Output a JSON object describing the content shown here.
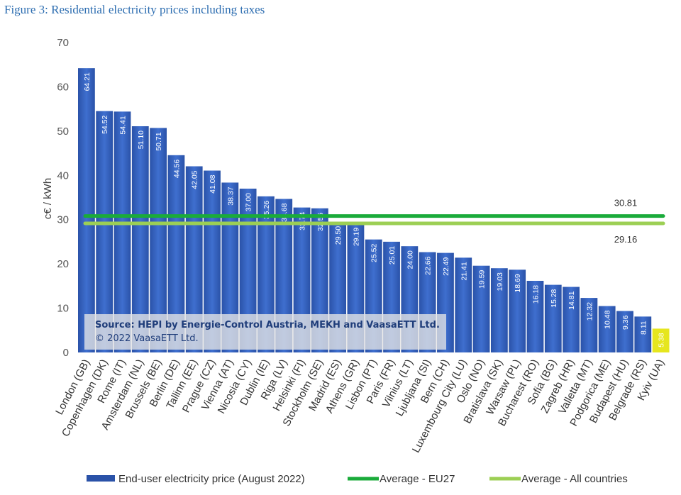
{
  "figure_title": "Figure 3: Residential electricity prices including taxes",
  "colors": {
    "bar": "#3a67c4",
    "bar_dark": "#2a52a8",
    "highlight_bar": "#e6e61e",
    "avg_eu27": "#1aab3a",
    "avg_all": "#9ccf54"
  },
  "source": {
    "line1": "Source: HEPI by Energie-Control Austria, MEKH and VaasaETT Ltd.",
    "line2": "© 2022 VaasaETT Ltd."
  },
  "chart_data": {
    "type": "bar",
    "ylabel": "c€ / kWh",
    "ylim": [
      0,
      70
    ],
    "yticks": [
      0,
      10,
      20,
      30,
      40,
      50,
      60,
      70
    ],
    "categories": [
      "London (GB)",
      "Copenhagen (DK)",
      "Rome (IT)",
      "Amsterdam (NL)",
      "Brussels (BE)",
      "Berlin (DE)",
      "Tallinn (EE)",
      "Prague (CZ)",
      "Vienna (AT)",
      "Nicosia (CY)",
      "Dublin (IE)",
      "Riga (LV)",
      "Helsinki (FI)",
      "Stockholm (SE)",
      "Madrid (ES)",
      "Athens (GR)",
      "Lisbon (PT)",
      "Paris (FR)",
      "Vilnius (LT)",
      "Ljubljana (SI)",
      "Bern (CH)",
      "Luxembourg City (LU)",
      "Oslo (NO)",
      "Bratislava (SK)",
      "Warsaw (PL)",
      "Bucharest (RO)",
      "Sofia (BG)",
      "Zagreb (HR)",
      "Valletta (MT)",
      "Podgorica (ME)",
      "Budapest (HU)",
      "Belgrade (RS)",
      "Kyiv (UA)"
    ],
    "series": [
      {
        "name": "End-user electricity price (August 2022)",
        "values": [
          64.21,
          54.52,
          54.41,
          51.1,
          50.71,
          44.56,
          42.05,
          41.08,
          38.37,
          37.0,
          35.26,
          34.68,
          32.74,
          32.56,
          29.5,
          29.19,
          25.52,
          25.01,
          24.0,
          22.66,
          22.49,
          21.41,
          19.59,
          19.03,
          18.69,
          16.18,
          15.28,
          14.81,
          12.32,
          10.48,
          9.36,
          8.11,
          5.38
        ],
        "value_labels": [
          "64.21",
          "54.52",
          "54.41",
          "51.10",
          "50.71",
          "44.56",
          "42.05",
          "41.08",
          "38.37",
          "37.00",
          "35.26",
          "34.68",
          "32.74",
          "32.56",
          "29.50",
          "29.19",
          "25.52",
          "25.01",
          "24.00",
          "22.66",
          "22.49",
          "21.41",
          "19.59",
          "19.03",
          "18.69",
          "16.18",
          "15.28",
          "14.81",
          "12.32",
          "10.48",
          "9.36",
          "8.11",
          "5.38"
        ],
        "highlight_index": 32
      }
    ],
    "reference_lines": [
      {
        "name": "Average - EU27",
        "value": 30.81,
        "label": "30.81"
      },
      {
        "name": "Average - All countries",
        "value": 29.16,
        "label": "29.16"
      }
    ],
    "legend": [
      "End-user electricity price (August 2022)",
      "Average - EU27",
      "Average - All countries"
    ],
    "legend_position": "bottom",
    "grid": false
  }
}
